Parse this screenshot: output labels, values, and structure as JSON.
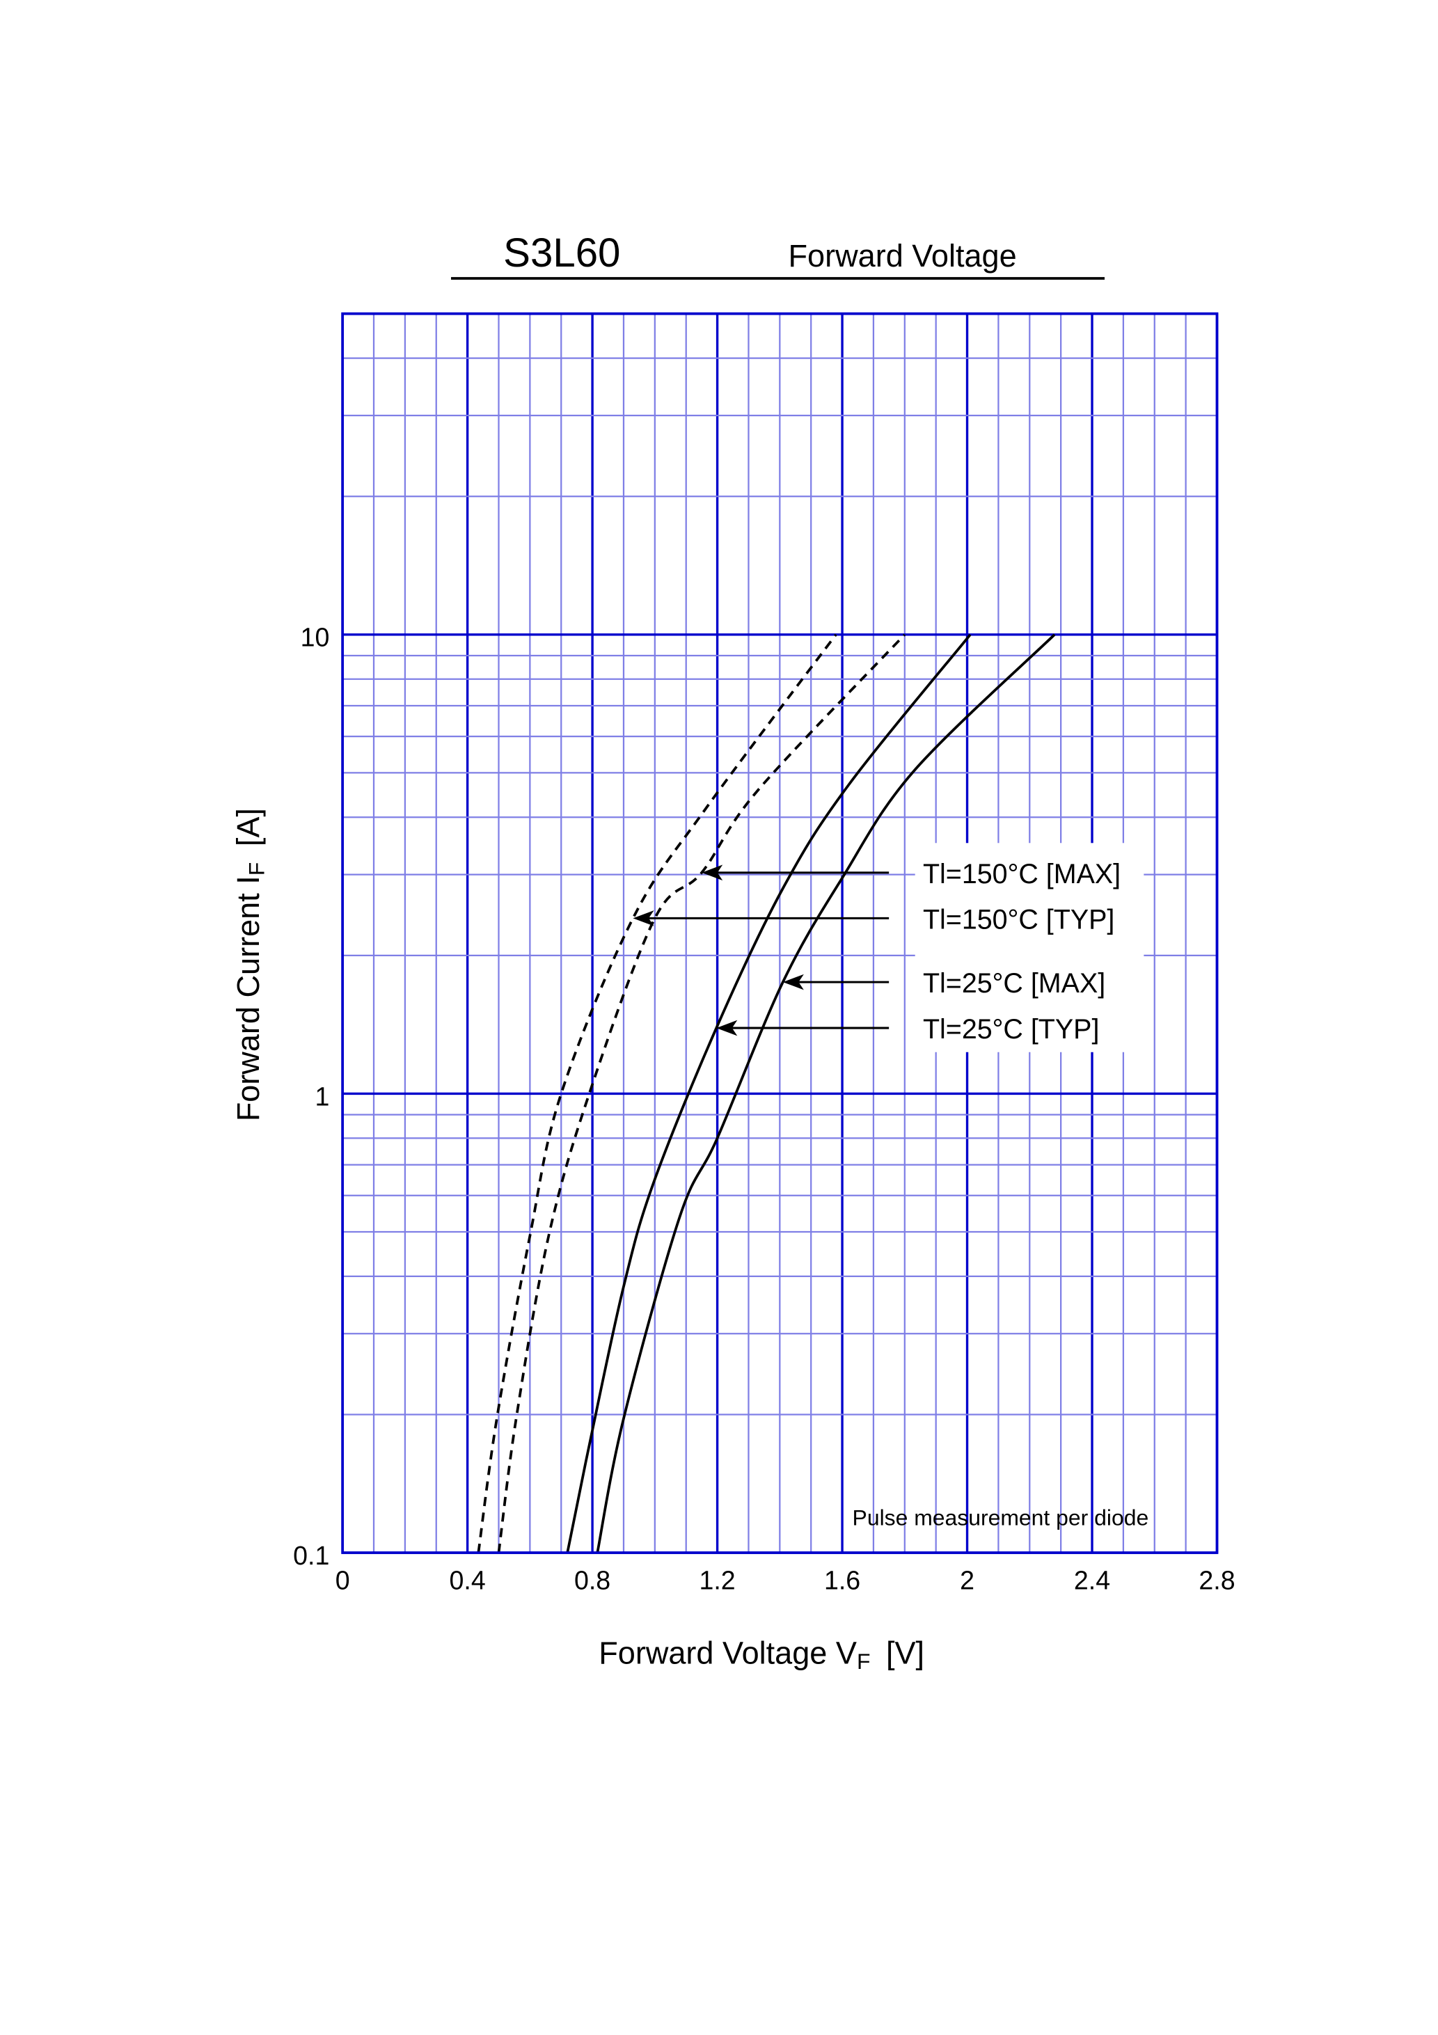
{
  "chart_data": {
    "type": "line",
    "title": "S3L60",
    "subtitle": "Forward  Voltage",
    "xlabel": "Forward Voltage  V",
    "xlabel_sub": "F",
    "xlabel_unit": "[V]",
    "ylabel": "Forward Current  I",
    "ylabel_sub": "F",
    "ylabel_unit": "[A]",
    "xlim": [
      0,
      2.8
    ],
    "ylim": [
      0.1,
      50
    ],
    "yscale": "log",
    "grid": true,
    "x_ticks": [
      "0",
      "0.4",
      "0.8",
      "1.2",
      "1.6",
      "2",
      "2.4",
      "2.8"
    ],
    "y_ticks": [
      "0.1",
      "1",
      "10"
    ],
    "annotation": "Pulse  measurement  per  diode",
    "colors": {
      "grid_major": "#0000cc",
      "grid_minor": "#7f7fe6",
      "curve": "#000000"
    },
    "series": [
      {
        "name": "Tl=150°C [TYP]",
        "style": "dashed",
        "x": [
          0.435,
          0.494,
          0.6,
          0.7,
          0.93,
          1.16,
          1.58
        ],
        "y": [
          0.1,
          0.196,
          0.49,
          1.0,
          2.41,
          4.15,
          10
        ]
      },
      {
        "name": "Tl=150°C [MAX]",
        "style": "dashed",
        "x": [
          0.5,
          0.556,
          0.66,
          0.79,
          1.0,
          1.15,
          1.33,
          1.8
        ],
        "y": [
          0.1,
          0.196,
          0.49,
          1.0,
          2.41,
          3.03,
          4.58,
          10
        ]
      },
      {
        "name": "Tl=25°C [TYP]",
        "style": "solid",
        "x": [
          0.72,
          0.795,
          0.9,
          0.996,
          1.197,
          1.41,
          1.62,
          2.01
        ],
        "y": [
          0.1,
          0.178,
          0.38,
          0.64,
          1.39,
          2.8,
          4.7,
          10
        ]
      },
      {
        "name": "Tl=25°C [MAX]",
        "style": "solid",
        "x": [
          0.816,
          0.9,
          1.08,
          1.2,
          1.41,
          1.6,
          1.83,
          2.28
        ],
        "y": [
          0.1,
          0.196,
          0.54,
          0.8,
          1.75,
          2.95,
          5.05,
          10
        ]
      }
    ],
    "legend": [
      {
        "label": "Tl=150°C [MAX]",
        "series": 1,
        "arrow_to": [
          1.15,
          3.03
        ]
      },
      {
        "label": "Tl=150°C [TYP]",
        "series": 0,
        "arrow_to": [
          0.93,
          2.41
        ]
      },
      {
        "label": "Tl=25°C [MAX]",
        "series": 3,
        "arrow_to": [
          1.41,
          1.75
        ]
      },
      {
        "label": "Tl=25°C [TYP]",
        "series": 2,
        "arrow_to": [
          1.197,
          1.39
        ]
      }
    ]
  }
}
